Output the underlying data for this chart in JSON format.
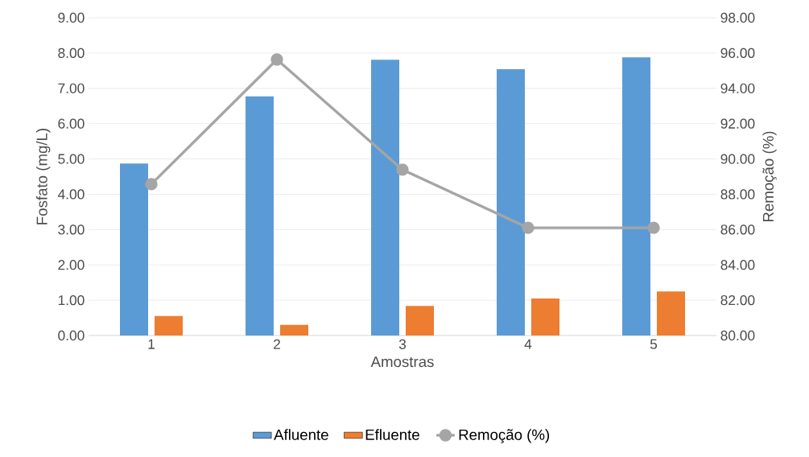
{
  "chart_data": {
    "type": "bar",
    "xlabel": "Amostras",
    "ylabel": "Fosfato (mg/L)",
    "y2label": "Remoção (%)",
    "categories": [
      "1",
      "2",
      "3",
      "4",
      "5"
    ],
    "series": [
      {
        "name": "Afluente",
        "color": "#5b9bd5",
        "values": [
          4.87,
          6.77,
          7.81,
          7.54,
          7.88
        ]
      },
      {
        "name": "Efluente",
        "color": "#ed7d31",
        "values": [
          0.55,
          0.3,
          0.84,
          1.05,
          1.25
        ]
      },
      {
        "name": "Remoção (%)",
        "type": "line",
        "axis": "y2",
        "color": "#a5a5a5",
        "marker": "circle",
        "values": [
          88.57,
          95.63,
          89.39,
          86.1,
          86.1
        ]
      }
    ],
    "ylim": [
      0,
      9
    ],
    "yticks": [
      {
        "value": 0,
        "label": "0.00"
      },
      {
        "value": 1,
        "label": "1.00"
      },
      {
        "value": 2,
        "label": "2.00"
      },
      {
        "value": 3,
        "label": "3.00"
      },
      {
        "value": 4,
        "label": "4.00"
      },
      {
        "value": 5,
        "label": "5.00"
      },
      {
        "value": 6,
        "label": "6.00"
      },
      {
        "value": 7,
        "label": "7.00"
      },
      {
        "value": 8,
        "label": "8.00"
      },
      {
        "value": 9,
        "label": "9.00"
      }
    ],
    "y2lim": [
      80,
      98
    ],
    "y2ticks": [
      {
        "value": 80,
        "label": "80.00"
      },
      {
        "value": 82,
        "label": "82.00"
      },
      {
        "value": 84,
        "label": "84.00"
      },
      {
        "value": 86,
        "label": "86.00"
      },
      {
        "value": 88,
        "label": "88.00"
      },
      {
        "value": 90,
        "label": "90.00"
      },
      {
        "value": 92,
        "label": "92.00"
      },
      {
        "value": 94,
        "label": "94.00"
      },
      {
        "value": 96,
        "label": "96.00"
      },
      {
        "value": 98,
        "label": "98.00"
      }
    ],
    "grid": "y",
    "legend": "bottom"
  }
}
